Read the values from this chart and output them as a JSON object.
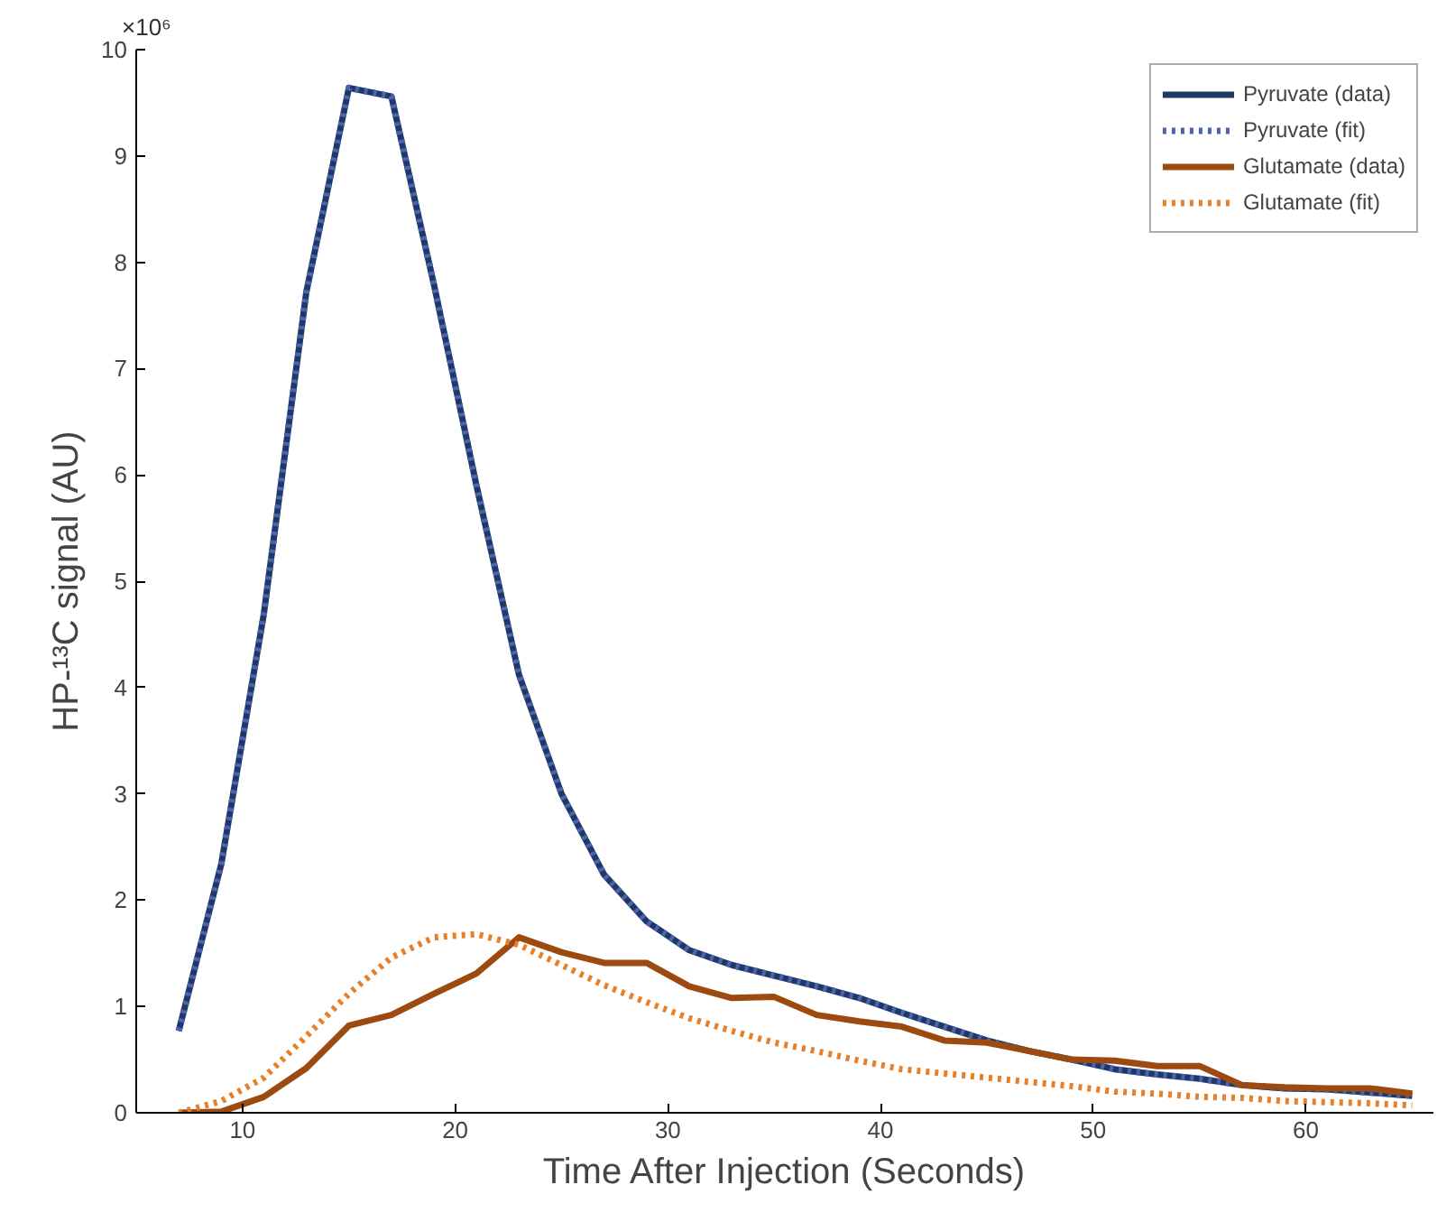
{
  "chart_data": {
    "type": "line",
    "xlabel": "Time After Injection (Seconds)",
    "ylabel": "HP-¹³C signal (AU)",
    "annotations": [
      "×10⁶"
    ],
    "x": [
      7,
      9,
      11,
      13,
      15,
      17,
      19,
      21,
      23,
      25,
      27,
      29,
      31,
      33,
      35,
      37,
      39,
      41,
      43,
      45,
      47,
      49,
      51,
      53,
      55,
      57,
      59,
      61,
      63,
      65
    ],
    "series": [
      {
        "name": "Pyruvate (data)",
        "color": "#1f3864",
        "line_style": "solid",
        "values": [
          0.77,
          2.34,
          4.69,
          7.72,
          9.64,
          9.56,
          7.79,
          5.9,
          4.12,
          3.0,
          2.24,
          1.8,
          1.53,
          1.39,
          1.29,
          1.19,
          1.08,
          0.94,
          0.81,
          0.68,
          0.58,
          0.5,
          0.41,
          0.36,
          0.32,
          0.26,
          0.23,
          0.22,
          0.19,
          0.16
        ]
      },
      {
        "name": "Pyruvate (fit)",
        "color": "#4a62b0",
        "line_style": "dotted",
        "values": [
          0.77,
          2.34,
          4.69,
          7.72,
          9.64,
          9.56,
          7.79,
          5.9,
          4.12,
          3.0,
          2.24,
          1.8,
          1.53,
          1.39,
          1.29,
          1.19,
          1.08,
          0.94,
          0.81,
          0.68,
          0.58,
          0.5,
          0.41,
          0.36,
          0.32,
          0.26,
          0.23,
          0.22,
          0.19,
          0.16
        ]
      },
      {
        "name": "Glutamate (data)",
        "color": "#9c4a10",
        "line_style": "solid",
        "values": [
          0,
          0.01,
          0.15,
          0.42,
          0.82,
          0.92,
          1.12,
          1.31,
          1.65,
          1.51,
          1.41,
          1.41,
          1.19,
          1.08,
          1.09,
          0.92,
          0.86,
          0.81,
          0.68,
          0.66,
          0.58,
          0.5,
          0.49,
          0.44,
          0.44,
          0.26,
          0.24,
          0.23,
          0.23,
          0.18
        ]
      },
      {
        "name": "Glutamate (fit)",
        "color": "#e8802a",
        "line_style": "dotted",
        "values": [
          0,
          0.11,
          0.33,
          0.72,
          1.12,
          1.46,
          1.65,
          1.68,
          1.58,
          1.39,
          1.2,
          1.04,
          0.89,
          0.77,
          0.66,
          0.58,
          0.49,
          0.41,
          0.37,
          0.33,
          0.29,
          0.25,
          0.2,
          0.18,
          0.15,
          0.14,
          0.11,
          0.1,
          0.09,
          0.07
        ]
      }
    ],
    "xlim": [
      5,
      66
    ],
    "ylim": [
      0,
      10
    ],
    "xticks": [
      10,
      20,
      30,
      40,
      50,
      60
    ],
    "yticks": [
      0,
      1,
      2,
      3,
      4,
      5,
      6,
      7,
      8,
      9,
      10
    ],
    "grid": false,
    "legend": "top right"
  }
}
